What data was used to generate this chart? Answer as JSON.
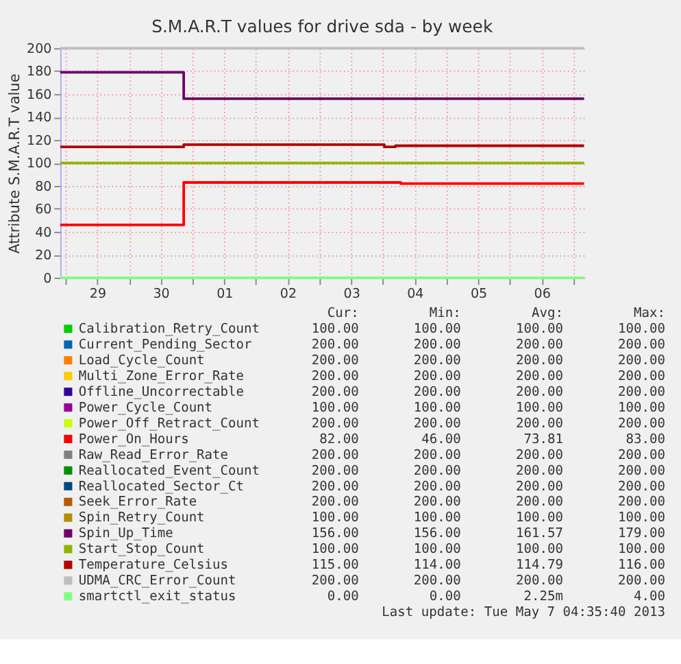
{
  "chart_data": {
    "type": "step",
    "title": "S.M.A.R.T values for drive sda - by week",
    "ylabel": "Attribute S.M.A.R.T value",
    "xlim": [
      "2013-04-28T22:00",
      "2013-05-07T04:00"
    ],
    "ylim": [
      0,
      200
    ],
    "yticks": [
      0,
      20,
      40,
      60,
      80,
      100,
      120,
      140,
      160,
      180,
      200
    ],
    "xticks": [
      {
        "value": "2013-04-29T00:00",
        "label": null
      },
      {
        "value": "2013-04-29T12:00",
        "label": "29"
      },
      {
        "value": "2013-04-30T00:00",
        "label": null
      },
      {
        "value": "2013-04-30T12:00",
        "label": "30"
      },
      {
        "value": "2013-05-01T00:00",
        "label": null
      },
      {
        "value": "2013-05-01T12:00",
        "label": "01"
      },
      {
        "value": "2013-05-02T00:00",
        "label": null
      },
      {
        "value": "2013-05-02T12:00",
        "label": "02"
      },
      {
        "value": "2013-05-03T00:00",
        "label": null
      },
      {
        "value": "2013-05-03T12:00",
        "label": "03"
      },
      {
        "value": "2013-05-04T00:00",
        "label": null
      },
      {
        "value": "2013-05-04T12:00",
        "label": "04"
      },
      {
        "value": "2013-05-05T00:00",
        "label": null
      },
      {
        "value": "2013-05-05T12:00",
        "label": "05"
      },
      {
        "value": "2013-05-06T00:00",
        "label": null
      },
      {
        "value": "2013-05-06T12:00",
        "label": "06"
      },
      {
        "value": "2013-05-07T00:00",
        "label": null
      }
    ],
    "grid": true,
    "legend": "bottom",
    "series": [
      {
        "name": "Calibration_Retry_Count",
        "color": "#00cc00"
      },
      {
        "name": "Current_Pending_Sector",
        "color": "#0066b3"
      },
      {
        "name": "Load_Cycle_Count",
        "color": "#ff8000"
      },
      {
        "name": "Multi_Zone_Error_Rate",
        "color": "#ffcc00"
      },
      {
        "name": "Offline_Uncorrectable",
        "color": "#330099"
      },
      {
        "name": "Power_Cycle_Count",
        "color": "#990099"
      },
      {
        "name": "Power_Off_Retract_Count",
        "color": "#ccff00"
      },
      {
        "name": "Power_On_Hours",
        "color": "#ff0000",
        "x": [
          "2013-04-28T22:00",
          "2013-04-30T20:40",
          "2013-05-04T06:40",
          "2013-05-07T04:00"
        ],
        "values": [
          46,
          83,
          82,
          82
        ]
      },
      {
        "name": "Raw_Read_Error_Rate",
        "color": "#808080"
      },
      {
        "name": "Reallocated_Event_Count",
        "color": "#008f00"
      },
      {
        "name": "Reallocated_Sector_Ct",
        "color": "#00487d"
      },
      {
        "name": "Seek_Error_Rate",
        "color": "#b35a00"
      },
      {
        "name": "Spin_Retry_Count",
        "color": "#b38f00"
      },
      {
        "name": "Spin_Up_Time",
        "color": "#6b006b",
        "x": [
          "2013-04-28T22:00",
          "2013-04-30T20:40",
          "2013-05-07T04:00"
        ],
        "values": [
          179,
          156,
          156
        ]
      },
      {
        "name": "Start_Stop_Count",
        "color": "#8fb300",
        "x": [
          "2013-04-28T22:00",
          "2013-05-07T04:00"
        ],
        "values": [
          100,
          100
        ]
      },
      {
        "name": "Temperature_Celsius",
        "color": "#b30000",
        "x": [
          "2013-04-28T22:00",
          "2013-04-30T20:40",
          "2013-05-04T00:30",
          "2013-05-04T04:40",
          "2013-05-07T04:00"
        ],
        "values": [
          114,
          116,
          114,
          115,
          115
        ]
      },
      {
        "name": "UDMA_CRC_Error_Count",
        "color": "#bebebe",
        "x": [
          "2013-04-28T22:00",
          "2013-05-07T04:00"
        ],
        "values": [
          200,
          200
        ]
      },
      {
        "name": "smartctl_exit_status",
        "color": "#80ff80",
        "x": [
          "2013-04-28T22:00",
          "2013-05-07T04:00"
        ],
        "values": [
          0,
          0
        ]
      }
    ],
    "annotations": [
      "Cur:",
      "Min:",
      "Avg:",
      "Max:",
      "100.00",
      "100.00",
      "100.00",
      "100.00",
      "200.00",
      "200.00",
      "200.00",
      "200.00",
      "200.00",
      "200.00",
      "200.00",
      "200.00",
      "200.00",
      "200.00",
      "200.00",
      "200.00",
      "200.00",
      "200.00",
      "200.00",
      "200.00",
      "100.00",
      "100.00",
      "100.00",
      "100.00",
      "200.00",
      "200.00",
      "200.00",
      "200.00",
      "82.00",
      "46.00",
      "73.81",
      "83.00",
      "200.00",
      "200.00",
      "200.00",
      "200.00",
      "200.00",
      "200.00",
      "200.00",
      "200.00",
      "200.00",
      "200.00",
      "200.00",
      "200.00",
      "200.00",
      "200.00",
      "200.00",
      "200.00",
      "100.00",
      "100.00",
      "100.00",
      "100.00",
      "156.00",
      "156.00",
      "161.57",
      "179.00",
      "100.00",
      "100.00",
      "100.00",
      "100.00",
      "115.00",
      "114.00",
      "114.79",
      "116.00",
      "200.00",
      "200.00",
      "200.00",
      "200.00",
      "0.00",
      "0.00",
      "2.25m",
      "4.00",
      "Last update:  Tue May  7 04:35:40 2013"
    ]
  }
}
